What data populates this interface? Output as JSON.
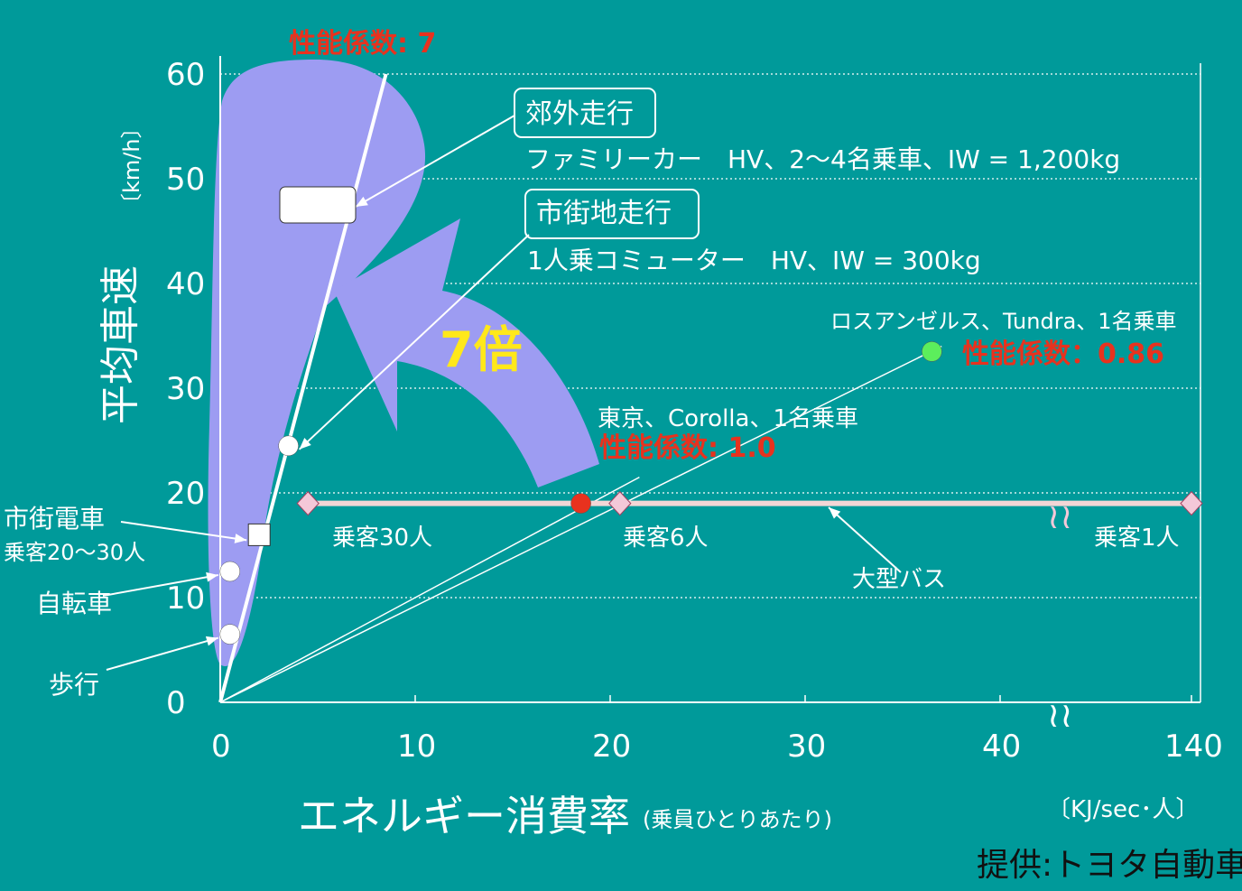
{
  "colors": {
    "background": "#009a9a",
    "region_fill": "#9d9cf2",
    "annotation_red": "#e8321e",
    "arrow_label": "#ffe81a",
    "bus_line": "#f2d6d6",
    "bus_marker": "#f4c8d8",
    "corolla_point": "#e8321e",
    "tundra_point": "#5cee5c",
    "white": "#ffffff"
  },
  "chart_data": {
    "type": "scatter",
    "xlabel": "エネルギー消費率",
    "xlabel_note": "(乗員ひとりあたり)",
    "xunit": "〔KJ/sec･人〕",
    "ylabel": "平均車速",
    "yunit": "〔km/h〕",
    "credit": "提供:トヨタ自動車",
    "x_ticks": [
      "0",
      "10",
      "20",
      "30",
      "40",
      "140"
    ],
    "y_ticks": [
      "0",
      "10",
      "20",
      "30",
      "40",
      "50",
      "60"
    ],
    "xlim": [
      0,
      50
    ],
    "ylim": [
      0,
      60
    ],
    "axis_break": "x between 40 and 140",
    "grid": "horizontal dotted",
    "points": [
      {
        "name": "walk",
        "label": "歩行",
        "x": 0.5,
        "y": 6.5,
        "marker": "circle"
      },
      {
        "name": "bicycle",
        "label": "自転車",
        "x": 0.5,
        "y": 12.5,
        "marker": "circle"
      },
      {
        "name": "tram",
        "label": "市街電車",
        "sublabel": "乗客20〜30人",
        "x": 2.0,
        "y": 16,
        "marker": "square"
      },
      {
        "name": "city-commuter",
        "label": "市街地走行",
        "x": 3.5,
        "y": 24.5,
        "marker": "circle"
      },
      {
        "name": "suburban-family-car",
        "label": "郊外走行",
        "x": 5.0,
        "y": 47.5,
        "marker": "rect"
      },
      {
        "name": "tokyo-corolla",
        "label": "東京、Corolla、1名乗車",
        "x": 18.5,
        "y": 19,
        "marker": "circle",
        "color": "#e8321e"
      },
      {
        "name": "la-tundra",
        "label": "ロスアンゼルス、Tundra、1名乗車",
        "x": 36.5,
        "y": 33.5,
        "marker": "circle",
        "color": "#5cee5c"
      }
    ],
    "bus_series": {
      "name": "大型バス",
      "y": 19,
      "points": [
        {
          "label": "乗客30人",
          "x": 4.5
        },
        {
          "label": "乗客6人",
          "x": 20.5
        },
        {
          "label": "乗客1人",
          "x": 140
        }
      ]
    },
    "performance_lines": [
      {
        "label": "性能係数: 7",
        "slope_kmh_per_kj": 7
      },
      {
        "label": "性能係数: 1.0",
        "slope_kmh_per_kj": 1.0
      },
      {
        "label": "性能係数：0.86",
        "slope_kmh_per_kj": 0.86
      }
    ],
    "callouts": {
      "suburban": {
        "box": "郊外走行",
        "text": "ファミリーカー　HV、2〜4名乗車、IW = 1,200kg"
      },
      "city": {
        "box": "市街地走行",
        "text": "1人乗コミューター　HV、IW = 300kg"
      }
    },
    "improvement_arrow": "7倍"
  }
}
